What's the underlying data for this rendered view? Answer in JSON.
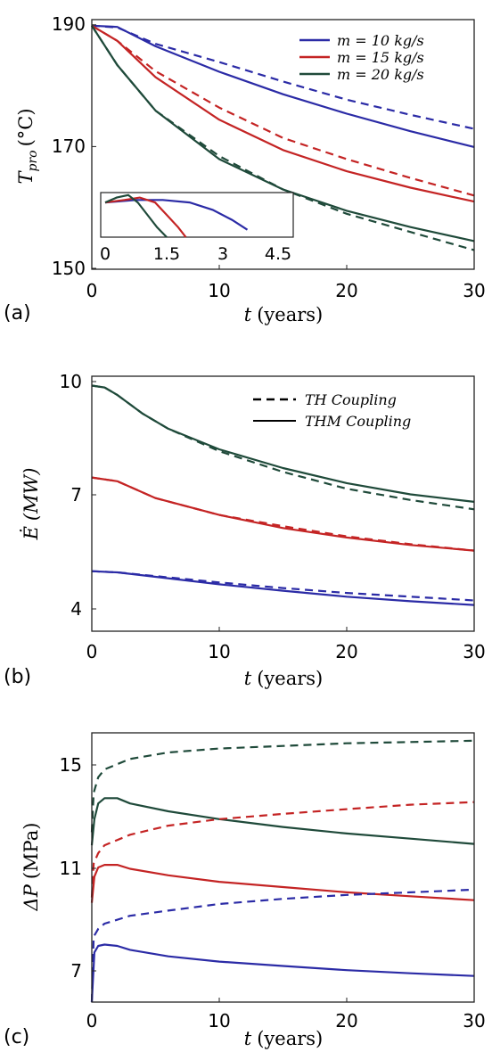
{
  "colors": {
    "m10": "#2b2ba6",
    "m15": "#c42424",
    "m20": "#1f4a3a",
    "coupling": "#000000"
  },
  "chart_data": [
    {
      "type": "line",
      "panel_label": "(a)",
      "xlabel": "t (years)",
      "xlabel_symbol": "t",
      "xlabel_unit": "(years)",
      "ylabel": "T_pro (°C)",
      "ylabel_symbol": "T",
      "ylabel_sub": "pro",
      "ylabel_unit": "(°C)",
      "xlim": [
        0,
        30
      ],
      "ylim": [
        150,
        191
      ],
      "xticks": [
        0,
        10,
        20,
        30
      ],
      "yticks": [
        150,
        170,
        190
      ],
      "legend": {
        "position": "top-right",
        "entries": [
          {
            "key": "m10",
            "text": "m = 10 kg/s"
          },
          {
            "key": "m15",
            "text": "m = 15 kg/s"
          },
          {
            "key": "m20",
            "text": "m = 20 kg/s"
          }
        ]
      },
      "series": [
        {
          "key": "m10",
          "style": "solid",
          "points": [
            [
              0,
              190
            ],
            [
              2,
              189.8
            ],
            [
              5,
              186.6
            ],
            [
              10,
              182.4
            ],
            [
              15,
              178.7
            ],
            [
              20,
              175.5
            ],
            [
              25,
              172.6
            ],
            [
              30,
              170.0
            ]
          ]
        },
        {
          "key": "m10",
          "style": "dashed",
          "points": [
            [
              0,
              190
            ],
            [
              2,
              189.7
            ],
            [
              5,
              187.0
            ],
            [
              10,
              184.0
            ],
            [
              15,
              180.8
            ],
            [
              20,
              177.8
            ],
            [
              25,
              175.3
            ],
            [
              30,
              173.0
            ]
          ]
        },
        {
          "key": "m15",
          "style": "solid",
          "points": [
            [
              0,
              190
            ],
            [
              2,
              187.5
            ],
            [
              5,
              181.5
            ],
            [
              10,
              174.5
            ],
            [
              15,
              169.5
            ],
            [
              20,
              166.0
            ],
            [
              25,
              163.3
            ],
            [
              30,
              161.0
            ]
          ]
        },
        {
          "key": "m15",
          "style": "dashed",
          "points": [
            [
              0,
              190
            ],
            [
              2,
              187.5
            ],
            [
              5,
              182.5
            ],
            [
              10,
              176.5
            ],
            [
              15,
              171.5
            ],
            [
              20,
              168.0
            ],
            [
              25,
              164.9
            ],
            [
              30,
              162.0
            ]
          ]
        },
        {
          "key": "m20",
          "style": "solid",
          "points": [
            [
              0,
              190
            ],
            [
              2,
              183.5
            ],
            [
              5,
              176.0
            ],
            [
              10,
              168.0
            ],
            [
              15,
              163.0
            ],
            [
              20,
              159.5
            ],
            [
              25,
              156.8
            ],
            [
              30,
              154.5
            ]
          ]
        },
        {
          "key": "m20",
          "style": "dashed",
          "points": [
            [
              0,
              190
            ],
            [
              2,
              183.5
            ],
            [
              5,
              176.0
            ],
            [
              10,
              168.5
            ],
            [
              15,
              163.0
            ],
            [
              20,
              159.0
            ],
            [
              25,
              156.0
            ],
            [
              30,
              153.0
            ]
          ]
        }
      ],
      "inset": {
        "xticks": [
          "0",
          "1.5",
          "3",
          "4.5"
        ],
        "xlim": [
          0,
          4.5
        ],
        "ylim": [
          188.5,
          190.3
        ],
        "series": [
          {
            "key": "m10",
            "points": [
              [
                0,
                189.9
              ],
              [
                0.8,
                190.0
              ],
              [
                1.5,
                190.0
              ],
              [
                2.2,
                189.9
              ],
              [
                2.8,
                189.6
              ],
              [
                3.3,
                189.2
              ],
              [
                3.7,
                188.8
              ]
            ]
          },
          {
            "key": "m15",
            "points": [
              [
                0,
                189.9
              ],
              [
                0.5,
                190.0
              ],
              [
                0.9,
                190.1
              ],
              [
                1.3,
                189.9
              ],
              [
                1.6,
                189.4
              ],
              [
                1.9,
                188.9
              ],
              [
                2.1,
                188.5
              ]
            ]
          },
          {
            "key": "m20",
            "points": [
              [
                0,
                189.9
              ],
              [
                0.3,
                190.1
              ],
              [
                0.6,
                190.2
              ],
              [
                0.85,
                189.9
              ],
              [
                1.1,
                189.4
              ],
              [
                1.35,
                188.9
              ],
              [
                1.6,
                188.5
              ]
            ]
          }
        ]
      }
    },
    {
      "type": "line",
      "panel_label": "(b)",
      "xlabel": "t (years)",
      "xlabel_symbol": "t",
      "xlabel_unit": "(years)",
      "ylabel": "Ė (MW)",
      "ylabel_symbol": "Ė",
      "ylabel_unit": "(MW)",
      "xlim": [
        0,
        30
      ],
      "ylim": [
        3.4,
        10.2
      ],
      "xticks": [
        0,
        10,
        20,
        30
      ],
      "yticks": [
        4,
        7,
        10
      ],
      "legend": {
        "position": "top-right",
        "entries": [
          {
            "style": "dashed",
            "text": "TH Coupling"
          },
          {
            "style": "solid",
            "text": "THM Coupling"
          }
        ]
      },
      "series": [
        {
          "key": "m20",
          "style": "solid",
          "points": [
            [
              0,
              9.95
            ],
            [
              1,
              9.9
            ],
            [
              2,
              9.7
            ],
            [
              4,
              9.2
            ],
            [
              6,
              8.8
            ],
            [
              10,
              8.25
            ],
            [
              15,
              7.75
            ],
            [
              20,
              7.35
            ],
            [
              25,
              7.05
            ],
            [
              30,
              6.85
            ]
          ]
        },
        {
          "key": "m20",
          "style": "dashed",
          "points": [
            [
              0,
              9.95
            ],
            [
              1,
              9.9
            ],
            [
              2,
              9.7
            ],
            [
              4,
              9.2
            ],
            [
              6,
              8.8
            ],
            [
              10,
              8.2
            ],
            [
              15,
              7.65
            ],
            [
              20,
              7.2
            ],
            [
              25,
              6.9
            ],
            [
              30,
              6.65
            ]
          ]
        },
        {
          "key": "m15",
          "style": "solid",
          "points": [
            [
              0,
              7.5
            ],
            [
              2,
              7.4
            ],
            [
              5,
              6.95
            ],
            [
              10,
              6.5
            ],
            [
              15,
              6.15
            ],
            [
              20,
              5.9
            ],
            [
              25,
              5.7
            ],
            [
              30,
              5.55
            ]
          ]
        },
        {
          "key": "m15",
          "style": "dashed",
          "points": [
            [
              0,
              7.5
            ],
            [
              2,
              7.4
            ],
            [
              5,
              6.95
            ],
            [
              10,
              6.5
            ],
            [
              15,
              6.2
            ],
            [
              20,
              5.93
            ],
            [
              25,
              5.72
            ],
            [
              30,
              5.55
            ]
          ]
        },
        {
          "key": "m10",
          "style": "solid",
          "points": [
            [
              0,
              5.0
            ],
            [
              2,
              4.97
            ],
            [
              5,
              4.85
            ],
            [
              10,
              4.65
            ],
            [
              15,
              4.48
            ],
            [
              20,
              4.32
            ],
            [
              25,
              4.2
            ],
            [
              30,
              4.1
            ]
          ]
        },
        {
          "key": "m10",
          "style": "dashed",
          "points": [
            [
              0,
              5.0
            ],
            [
              2,
              4.97
            ],
            [
              5,
              4.87
            ],
            [
              10,
              4.7
            ],
            [
              15,
              4.55
            ],
            [
              20,
              4.42
            ],
            [
              25,
              4.32
            ],
            [
              30,
              4.22
            ]
          ]
        }
      ]
    },
    {
      "type": "line",
      "panel_label": "(c)",
      "xlabel": "t (years)",
      "xlabel_symbol": "t",
      "xlabel_unit": "(years)",
      "ylabel": "ΔP (MPa)",
      "ylabel_symbol": "ΔP",
      "ylabel_unit": "(MPa)",
      "xlim": [
        0,
        30
      ],
      "ylim": [
        6,
        16.3
      ],
      "xticks": [
        0,
        10,
        20,
        30
      ],
      "yticks": [
        7,
        11,
        15
      ],
      "series": [
        {
          "key": "m20",
          "style": "dashed",
          "points": [
            [
              0,
              12.5
            ],
            [
              0.15,
              14.0
            ],
            [
              0.5,
              14.6
            ],
            [
              1,
              14.9
            ],
            [
              3,
              15.3
            ],
            [
              6,
              15.55
            ],
            [
              10,
              15.7
            ],
            [
              15,
              15.8
            ],
            [
              20,
              15.9
            ],
            [
              25,
              15.95
            ],
            [
              30,
              16.0
            ]
          ]
        },
        {
          "key": "m20",
          "style": "solid",
          "points": [
            [
              0,
              12.0
            ],
            [
              0.2,
              13.0
            ],
            [
              0.5,
              13.6
            ],
            [
              1,
              13.8
            ],
            [
              2,
              13.8
            ],
            [
              3,
              13.6
            ],
            [
              6,
              13.3
            ],
            [
              10,
              13.0
            ],
            [
              15,
              12.7
            ],
            [
              20,
              12.45
            ],
            [
              25,
              12.25
            ],
            [
              30,
              12.05
            ]
          ]
        },
        {
          "key": "m15",
          "style": "dashed",
          "points": [
            [
              0,
              10.0
            ],
            [
              0.15,
              11.3
            ],
            [
              0.5,
              11.7
            ],
            [
              1,
              12.0
            ],
            [
              3,
              12.4
            ],
            [
              6,
              12.75
            ],
            [
              10,
              13.0
            ],
            [
              15,
              13.2
            ],
            [
              20,
              13.38
            ],
            [
              25,
              13.55
            ],
            [
              30,
              13.65
            ]
          ]
        },
        {
          "key": "m15",
          "style": "solid",
          "points": [
            [
              0,
              9.8
            ],
            [
              0.2,
              10.8
            ],
            [
              0.5,
              11.15
            ],
            [
              1,
              11.25
            ],
            [
              2,
              11.25
            ],
            [
              3,
              11.1
            ],
            [
              6,
              10.85
            ],
            [
              10,
              10.6
            ],
            [
              15,
              10.4
            ],
            [
              20,
              10.2
            ],
            [
              25,
              10.05
            ],
            [
              30,
              9.9
            ]
          ]
        },
        {
          "key": "m10",
          "style": "dashed",
          "points": [
            [
              0,
              6.0
            ],
            [
              0.15,
              8.5
            ],
            [
              0.5,
              8.8
            ],
            [
              1,
              9.0
            ],
            [
              3,
              9.3
            ],
            [
              6,
              9.5
            ],
            [
              10,
              9.75
            ],
            [
              15,
              9.95
            ],
            [
              20,
              10.1
            ],
            [
              25,
              10.2
            ],
            [
              30,
              10.3
            ]
          ]
        },
        {
          "key": "m10",
          "style": "solid",
          "points": [
            [
              0,
              6.0
            ],
            [
              0.2,
              7.9
            ],
            [
              0.5,
              8.15
            ],
            [
              1,
              8.2
            ],
            [
              2,
              8.15
            ],
            [
              3,
              8.0
            ],
            [
              6,
              7.75
            ],
            [
              10,
              7.55
            ],
            [
              15,
              7.38
            ],
            [
              20,
              7.22
            ],
            [
              25,
              7.1
            ],
            [
              30,
              7.0
            ]
          ]
        }
      ]
    }
  ]
}
